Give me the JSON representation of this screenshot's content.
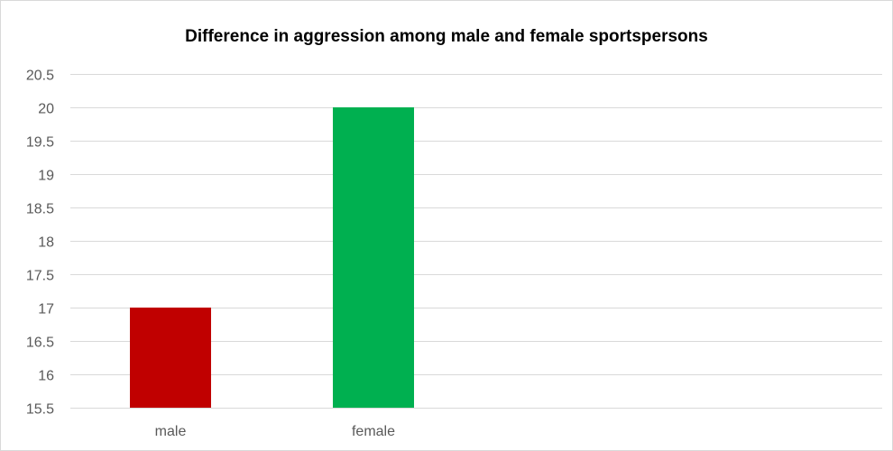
{
  "chart_data": {
    "type": "bar",
    "title": "Difference in aggression among male and female sportspersons",
    "categories": [
      "male",
      "female"
    ],
    "values": [
      17,
      20
    ],
    "colors": [
      "#c00000",
      "#00b050"
    ],
    "ylim": [
      15.5,
      20.5
    ],
    "ytick_step": 0.5,
    "yticks": [
      "15.5",
      "16",
      "16.5",
      "17",
      "17.5",
      "18",
      "18.5",
      "19",
      "19.5",
      "20",
      "20.5"
    ],
    "xlabel": "",
    "ylabel": "",
    "grid": true,
    "legend": "none"
  }
}
